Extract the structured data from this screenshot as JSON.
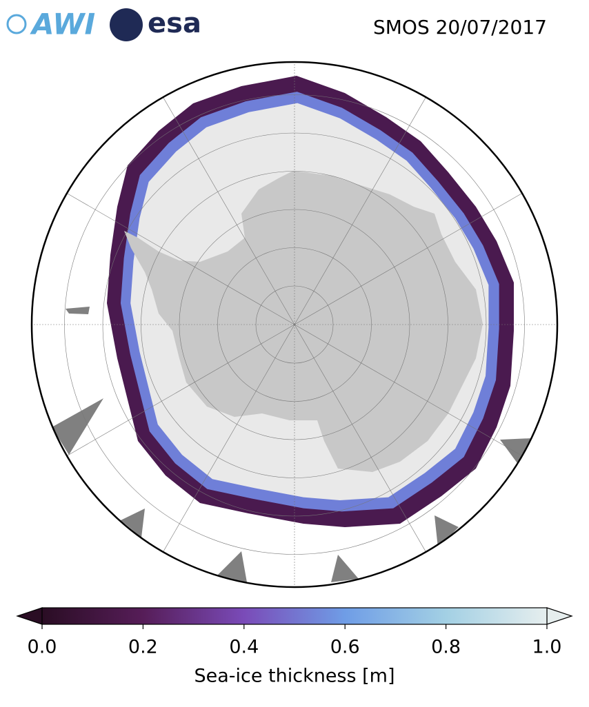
{
  "header": {
    "logos": [
      "AWI",
      "esa"
    ],
    "title": "SMOS 20/07/2017"
  },
  "colorbar": {
    "label": "Sea-ice thickness [m]",
    "lim": [
      0,
      1
    ],
    "ticks": [
      {
        "value": 0,
        "label": "0.0"
      },
      {
        "value": 0.2,
        "label": "0.2"
      },
      {
        "value": 0.4,
        "label": "0.4"
      },
      {
        "value": 0.6,
        "label": "0.6"
      },
      {
        "value": 0.8,
        "label": "0.8"
      },
      {
        "value": 1,
        "label": "1.0"
      }
    ],
    "colors": [
      "#2a0d24",
      "#561d58",
      "#7a4bb8",
      "#6f9de6",
      "#a3d0e4",
      "#e6eeee"
    ]
  }
}
